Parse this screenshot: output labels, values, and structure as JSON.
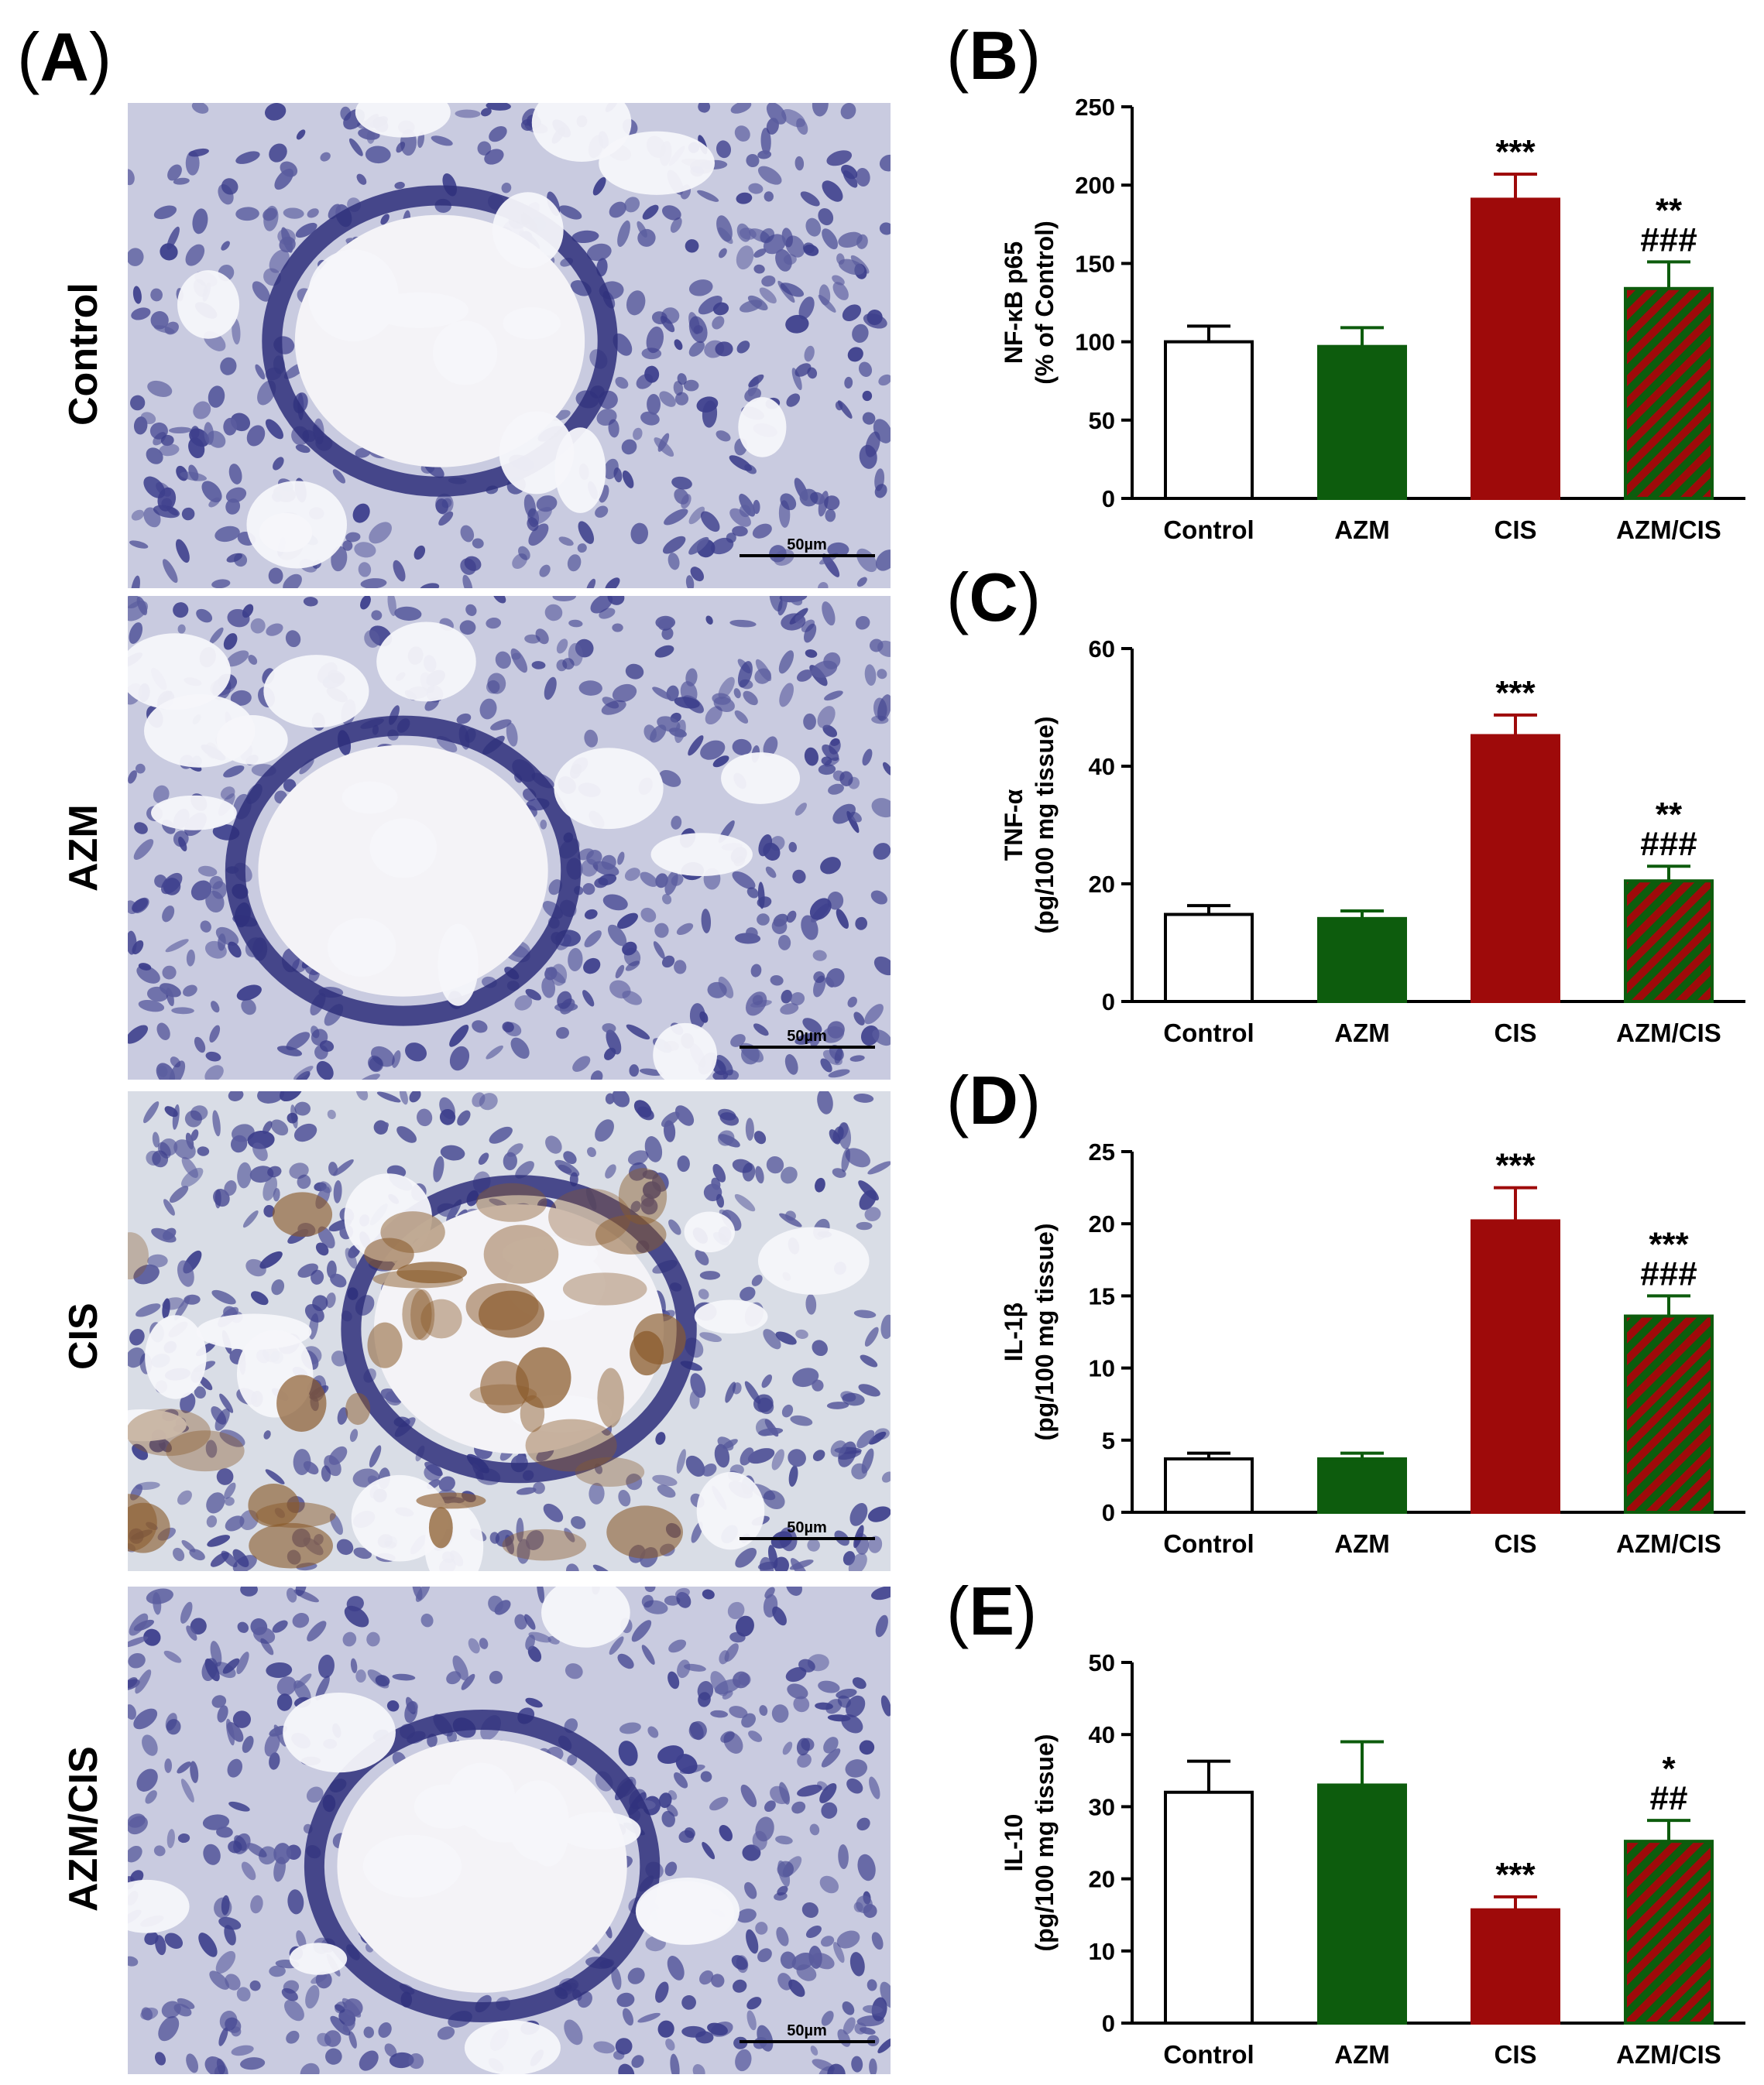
{
  "panel_a": {
    "label": "A",
    "rows": [
      {
        "label": "Control",
        "scale": "50µm",
        "stain": "blue"
      },
      {
        "label": "AZM",
        "scale": "50µm",
        "stain": "blue"
      },
      {
        "label": "CIS",
        "scale": "50µm",
        "stain": "brown"
      },
      {
        "label": "AZM/CIS",
        "scale": "50µm",
        "stain": "blue"
      }
    ]
  },
  "colors": {
    "control": "#ffffff",
    "azm": "#0d5c0d",
    "cis": "#9e0a0a",
    "azm_cis_stripe_a": "#0d5c0d",
    "azm_cis_stripe_b": "#9e0a0a",
    "hema_blue": "#3d3f8c",
    "dab_brown": "#8a5a2a"
  },
  "chart_data": [
    {
      "panel": "B",
      "type": "bar",
      "ylabel_lines": [
        "NF-κB p65",
        "(% of Control)"
      ],
      "ylim": [
        0,
        250
      ],
      "yticks": [
        0,
        50,
        100,
        150,
        200,
        250
      ],
      "categories": [
        "Control",
        "AZM",
        "CIS",
        "AZM/CIS"
      ],
      "values": [
        100,
        97,
        191,
        134
      ],
      "errors": [
        10,
        12,
        16,
        17
      ],
      "annotations": [
        [],
        [],
        [
          "***"
        ],
        [
          "**",
          "###"
        ]
      ]
    },
    {
      "panel": "C",
      "type": "bar",
      "ylabel_lines": [
        "TNF-α",
        "(pg/100 mg tissue)"
      ],
      "ylim": [
        0,
        60
      ],
      "yticks": [
        0,
        20,
        40,
        60
      ],
      "categories": [
        "Control",
        "AZM",
        "CIS",
        "AZM/CIS"
      ],
      "values": [
        14.8,
        14.1,
        45.2,
        20.5
      ],
      "errors": [
        1.5,
        1.3,
        3.5,
        2.5
      ],
      "annotations": [
        [],
        [],
        [
          "***"
        ],
        [
          "**",
          "###"
        ]
      ]
    },
    {
      "panel": "D",
      "type": "bar",
      "ylabel_lines": [
        "IL-1β",
        "(pg/100 mg tissue)"
      ],
      "ylim": [
        0,
        25
      ],
      "yticks": [
        0,
        5,
        10,
        15,
        20,
        25
      ],
      "categories": [
        "Control",
        "AZM",
        "CIS",
        "AZM/CIS"
      ],
      "values": [
        3.7,
        3.7,
        20.2,
        13.6
      ],
      "errors": [
        0.4,
        0.4,
        2.3,
        1.4
      ],
      "annotations": [
        [],
        [],
        [
          "***"
        ],
        [
          "***",
          "###"
        ]
      ]
    },
    {
      "panel": "E",
      "type": "bar",
      "ylabel_lines": [
        "IL-10",
        "(pg/100 mg tissue)"
      ],
      "ylim": [
        0,
        50
      ],
      "yticks": [
        0,
        10,
        20,
        30,
        40,
        50
      ],
      "categories": [
        "Control",
        "AZM",
        "CIS",
        "AZM/CIS"
      ],
      "values": [
        32,
        33,
        15.7,
        25.2
      ],
      "errors": [
        4.3,
        6,
        1.8,
        2.9
      ],
      "annotations": [
        [],
        [],
        [
          "***"
        ],
        [
          "*",
          "##"
        ]
      ]
    }
  ]
}
